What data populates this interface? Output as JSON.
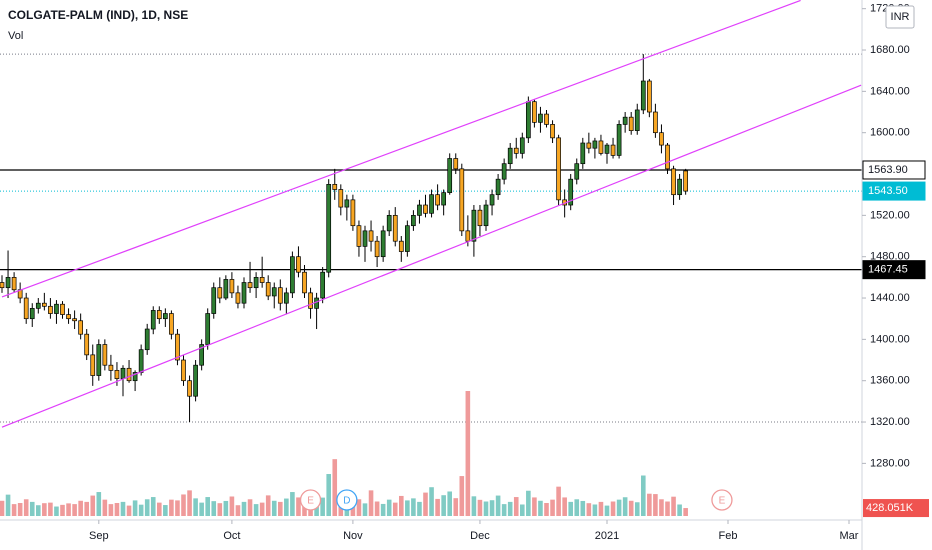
{
  "chart_data": {
    "type": "candlestick",
    "title": "COLGATE-PALM (IND), 1D, NSE",
    "subtitle": "Vol",
    "currency": "INR",
    "up_color": "#2e7d32",
    "down_color": "#f7a623",
    "volume_up_color": "#80cbc4",
    "volume_down_color": "#ef9a9a",
    "categories": [
      null,
      null,
      null,
      null,
      null,
      null,
      null,
      null,
      null,
      null,
      null,
      null,
      null,
      null,
      null,
      null,
      "Sep",
      null,
      null,
      null,
      null,
      null,
      null,
      null,
      null,
      null,
      null,
      null,
      null,
      null,
      null,
      null,
      null,
      null,
      null,
      null,
      null,
      null,
      "Oct",
      null,
      null,
      null,
      null,
      null,
      null,
      null,
      null,
      null,
      null,
      null,
      null,
      null,
      null,
      null,
      null,
      null,
      null,
      null,
      "Nov",
      null,
      null,
      null,
      null,
      null,
      null,
      null,
      null,
      null,
      null,
      null,
      null,
      null,
      null,
      null,
      null,
      null,
      null,
      null,
      null,
      "Dec",
      null,
      null,
      null,
      null,
      null,
      null,
      null,
      null,
      null,
      null,
      null,
      null,
      null,
      null,
      null,
      null,
      null,
      null,
      null,
      null,
      "2021",
      null,
      null,
      null,
      null,
      null,
      null,
      null,
      null,
      null,
      null,
      null,
      null,
      null,
      null,
      null,
      null,
      null,
      null,
      null,
      "Feb",
      null,
      null,
      null,
      null,
      null,
      null,
      null,
      null,
      null,
      null,
      null,
      null,
      null,
      null,
      null,
      null,
      null,
      null,
      null,
      "Mar",
      null,
      null
    ],
    "open": [
      1455,
      1450,
      1460,
      1448,
      1440,
      1420,
      1430,
      1435,
      1432,
      1425,
      1434,
      1424,
      1420,
      1418,
      1405,
      1385,
      1365,
      1395,
      1375,
      1370,
      1362,
      1372,
      1360,
      1368,
      1390,
      1410,
      1428,
      1420,
      1425,
      1405,
      1380,
      1360,
      1345,
      1375,
      1395,
      1425,
      1450,
      1440,
      1458,
      1445,
      1435,
      1455,
      1450,
      1460,
      1455,
      1442,
      1450,
      1435,
      1445,
      1480,
      1465,
      1445,
      1430,
      1440,
      1465,
      1550,
      1545,
      1528,
      1535,
      1510,
      1490,
      1505,
      1495,
      1480,
      1505,
      1520,
      1495,
      1485,
      1510,
      1520,
      1530,
      1522,
      1540,
      1530,
      1542,
      1575,
      1565,
      1505,
      1495,
      1525,
      1510,
      1530,
      1540,
      1555,
      1570,
      1585,
      1580,
      1595,
      1630,
      1610,
      1618,
      1608,
      1595,
      1535,
      1530,
      1555,
      1570,
      1590,
      1585,
      1592,
      1580,
      1588,
      1578,
      1608,
      1615,
      1602,
      1622,
      1650,
      1620,
      1600,
      1588,
      1565,
      1540,
      1563,
      null,
      null,
      null,
      null,
      null,
      null,
      null,
      null,
      null,
      null,
      null,
      null,
      null,
      null,
      null,
      null,
      null,
      null,
      null,
      null,
      null,
      null,
      null,
      null,
      null,
      null,
      null,
      null,
      null
    ],
    "high": [
      1462,
      1486,
      1465,
      1455,
      1445,
      1435,
      1440,
      1445,
      1440,
      1438,
      1437,
      1430,
      1428,
      1425,
      1410,
      1395,
      1400,
      1400,
      1385,
      1378,
      1375,
      1380,
      1370,
      1395,
      1415,
      1432,
      1432,
      1430,
      1428,
      1410,
      1385,
      1365,
      1380,
      1400,
      1430,
      1455,
      1460,
      1462,
      1465,
      1452,
      1460,
      1475,
      1465,
      1480,
      1462,
      1455,
      1458,
      1450,
      1485,
      1490,
      1472,
      1450,
      1445,
      1470,
      1555,
      1565,
      1550,
      1540,
      1540,
      1515,
      1510,
      1515,
      1500,
      1510,
      1525,
      1528,
      1500,
      1515,
      1525,
      1535,
      1540,
      1545,
      1550,
      1545,
      1580,
      1580,
      1570,
      1520,
      1530,
      1530,
      1535,
      1545,
      1560,
      1575,
      1590,
      1595,
      1600,
      1635,
      1632,
      1625,
      1622,
      1612,
      1598,
      1545,
      1560,
      1575,
      1595,
      1600,
      1595,
      1598,
      1590,
      1595,
      1612,
      1620,
      1620,
      1628,
      1676,
      1652,
      1628,
      1608,
      1590,
      1568,
      1560,
      1565,
      null,
      null,
      null,
      null,
      null,
      null,
      null,
      null,
      null,
      null,
      null,
      null,
      null,
      null,
      null,
      null,
      null,
      null,
      null,
      null,
      null,
      null,
      null,
      null,
      null,
      null,
      null,
      null,
      null
    ],
    "low": [
      1445,
      1440,
      1445,
      1435,
      1415,
      1412,
      1425,
      1428,
      1420,
      1415,
      1420,
      1415,
      1410,
      1400,
      1380,
      1355,
      1360,
      1370,
      1360,
      1355,
      1345,
      1358,
      1350,
      1365,
      1385,
      1405,
      1415,
      1412,
      1400,
      1375,
      1355,
      1320,
      1340,
      1370,
      1390,
      1420,
      1435,
      1438,
      1440,
      1430,
      1430,
      1445,
      1440,
      1450,
      1438,
      1430,
      1428,
      1425,
      1440,
      1460,
      1440,
      1420,
      1410,
      1435,
      1460,
      1535,
      1520,
      1515,
      1505,
      1480,
      1475,
      1485,
      1470,
      1475,
      1500,
      1490,
      1475,
      1480,
      1505,
      1512,
      1518,
      1518,
      1525,
      1520,
      1540,
      1560,
      1500,
      1490,
      1480,
      1500,
      1505,
      1520,
      1535,
      1550,
      1565,
      1575,
      1575,
      1590,
      1605,
      1600,
      1605,
      1590,
      1530,
      1518,
      1525,
      1550,
      1565,
      1580,
      1575,
      1578,
      1570,
      1575,
      1575,
      1600,
      1598,
      1598,
      1618,
      1615,
      1595,
      1580,
      1560,
      1530,
      1535,
      1540,
      null,
      null,
      null,
      null,
      null,
      null,
      null,
      null,
      null,
      null,
      null,
      null,
      null,
      null,
      null,
      null,
      null,
      null,
      null,
      null,
      null,
      null,
      null,
      null,
      null,
      null,
      null,
      null,
      null
    ],
    "close": [
      1450,
      1460,
      1448,
      1440,
      1420,
      1430,
      1435,
      1432,
      1425,
      1434,
      1424,
      1420,
      1418,
      1405,
      1385,
      1365,
      1395,
      1375,
      1370,
      1362,
      1372,
      1360,
      1368,
      1390,
      1410,
      1428,
      1420,
      1425,
      1405,
      1380,
      1360,
      1345,
      1375,
      1395,
      1425,
      1450,
      1440,
      1458,
      1445,
      1435,
      1455,
      1450,
      1460,
      1455,
      1442,
      1450,
      1435,
      1445,
      1480,
      1465,
      1445,
      1430,
      1440,
      1465,
      1550,
      1545,
      1528,
      1535,
      1510,
      1490,
      1505,
      1495,
      1480,
      1505,
      1520,
      1495,
      1485,
      1510,
      1520,
      1530,
      1522,
      1540,
      1530,
      1542,
      1575,
      1565,
      1505,
      1495,
      1525,
      1510,
      1530,
      1540,
      1555,
      1570,
      1585,
      1580,
      1595,
      1630,
      1610,
      1618,
      1608,
      1595,
      1535,
      1530,
      1555,
      1570,
      1590,
      1585,
      1592,
      1580,
      1588,
      1578,
      1608,
      1615,
      1602,
      1622,
      1650,
      1620,
      1600,
      1588,
      1565,
      1540,
      1555,
      1543.5,
      null,
      null,
      null,
      null,
      null,
      null,
      null,
      null,
      null,
      null,
      null,
      null,
      null,
      null,
      null,
      null,
      null,
      null,
      null,
      null,
      null,
      null,
      null,
      null,
      null,
      null,
      null,
      null,
      null
    ],
    "volume": [
      820000,
      1150000,
      640000,
      700000,
      900000,
      760000,
      580000,
      690000,
      720000,
      510000,
      600000,
      680000,
      640000,
      820000,
      760000,
      1100000,
      1290000,
      880000,
      640000,
      700000,
      760000,
      560000,
      840000,
      610000,
      900000,
      1020000,
      720000,
      590000,
      880000,
      840000,
      1160000,
      1380000,
      950000,
      720000,
      1020000,
      800000,
      690000,
      810000,
      1050000,
      580000,
      760000,
      900000,
      640000,
      720000,
      1110000,
      820000,
      760000,
      940000,
      1290000,
      1000000,
      900000,
      740000,
      810000,
      990000,
      2260000,
      3060000,
      1180000,
      720000,
      980000,
      900000,
      680000,
      1380000,
      780000,
      650000,
      880000,
      720000,
      1080000,
      840000,
      950000,
      760000,
      1260000,
      1550000,
      920000,
      1120000,
      1320000,
      960000,
      2150000,
      6730000,
      1060000,
      870000,
      780000,
      850000,
      1100000,
      640000,
      760000,
      1020000,
      620000,
      1360000,
      1000000,
      820000,
      700000,
      880000,
      1580000,
      1000000,
      760000,
      900000,
      810000,
      690000,
      620000,
      760000,
      560000,
      780000,
      880000,
      1010000,
      820000,
      740000,
      2180000,
      1200000,
      1180000,
      900000,
      780000,
      1040000,
      620000,
      428051,
      null,
      null,
      null,
      null,
      null,
      null,
      null,
      null,
      null,
      null,
      null,
      null,
      null,
      null,
      null,
      null,
      null,
      null,
      null,
      null,
      null,
      null,
      null,
      null,
      null,
      null,
      null,
      null,
      null
    ],
    "last_volume_label": "428.051K",
    "ylim": [
      1225.2,
      1728.4
    ],
    "yticks": [
      {
        "value": 1280,
        "label": "1280.00"
      },
      {
        "value": 1320,
        "label": "1320.00"
      },
      {
        "value": 1360,
        "label": "1360.00"
      },
      {
        "value": 1400,
        "label": "1400.00"
      },
      {
        "value": 1440,
        "label": "1440.00"
      },
      {
        "value": 1480,
        "label": "1480.00"
      },
      {
        "value": 1520,
        "label": "1520.00"
      },
      {
        "value": 1560,
        "label": "1560.00"
      },
      {
        "value": 1600,
        "label": "1600.00"
      },
      {
        "value": 1640,
        "label": "1640.00"
      },
      {
        "value": 1680,
        "label": "1680.00"
      },
      {
        "value": 1720,
        "label": "1720.00"
      }
    ],
    "levels": [
      {
        "value": 1563.9,
        "label": "1563.90"
      },
      {
        "value": 1467.45,
        "label": "1467.45"
      }
    ],
    "last_price": {
      "value": 1543.5,
      "label": "1543.50"
    },
    "dotted_levels": [
      1676,
      1320
    ],
    "trendlines": [
      {
        "color": "#e040fb",
        "points": [
          [
            0,
            1441
          ],
          [
            132,
            1728
          ]
        ]
      },
      {
        "color": "#e040fb",
        "points": [
          [
            0,
            1315
          ],
          [
            142,
            1646
          ]
        ]
      }
    ],
    "events": [
      {
        "label": "E",
        "at": 51,
        "color": "#ef9a9a"
      },
      {
        "label": "D",
        "at": 57,
        "color": "#42a5f5"
      },
      {
        "label": "E",
        "at": 119,
        "color": "#ef9a9a"
      }
    ]
  }
}
